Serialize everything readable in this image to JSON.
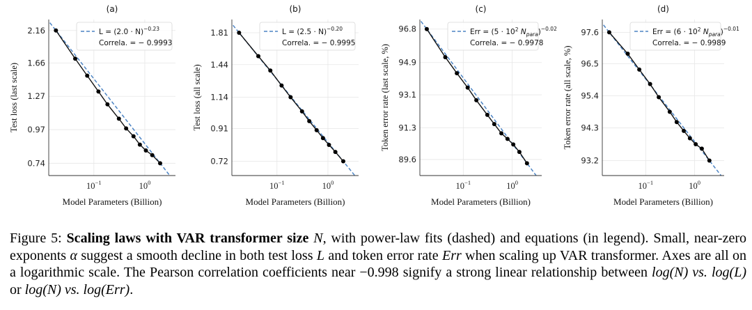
{
  "chart_data": [
    {
      "type": "line",
      "panel": "(a)",
      "xlabel": "Model Parameters (Billion)",
      "ylabel": "Test loss (last scale)",
      "xscale": "log",
      "yscale": "log",
      "xlim": [
        0.013,
        4.0
      ],
      "ylim": [
        0.67,
        2.36
      ],
      "yticks": [
        0.74,
        0.97,
        1.27,
        1.66,
        2.16
      ],
      "ytick_labels": [
        "0.74",
        "0.97",
        "1.27",
        "1.66",
        "2.16"
      ],
      "xticks": [
        0.1,
        1.0
      ],
      "xtick_bases": [
        "10",
        "10"
      ],
      "xtick_exps": [
        "−1",
        "0"
      ],
      "legend": {
        "fit": "L = (2.0 · N)",
        "exp": "−0.23",
        "correlation": "Correla. = − 0.9993"
      },
      "legend_location": "top-right",
      "fit": {
        "coef": 2.0,
        "exp": -0.23
      },
      "x": [
        0.018,
        0.043,
        0.074,
        0.123,
        0.185,
        0.31,
        0.43,
        0.6,
        0.8,
        1.05,
        1.4,
        2.0
      ],
      "y": [
        2.16,
        1.72,
        1.5,
        1.32,
        1.19,
        1.06,
        0.98,
        0.92,
        0.86,
        0.82,
        0.79,
        0.74
      ]
    },
    {
      "type": "line",
      "panel": "(b)",
      "xlabel": "Model Parameters (Billion)",
      "ylabel": "Test loss (all scale)",
      "xscale": "log",
      "yscale": "log",
      "xlim": [
        0.013,
        4.0
      ],
      "ylim": [
        0.65,
        1.99
      ],
      "yticks": [
        0.72,
        0.91,
        1.14,
        1.44,
        1.81
      ],
      "ytick_labels": [
        "0.72",
        "0.91",
        "1.14",
        "1.44",
        "1.81"
      ],
      "xticks": [
        0.1,
        1.0
      ],
      "xtick_bases": [
        "10",
        "10"
      ],
      "xtick_exps": [
        "−1",
        "0"
      ],
      "legend": {
        "fit": "L = (2.5 · N)",
        "exp": "−0.20",
        "correlation": "Correla. = − 0.9995"
      },
      "legend_location": "top-right",
      "fit": {
        "coef": 2.5,
        "exp": -0.2
      },
      "x": [
        0.018,
        0.043,
        0.074,
        0.123,
        0.185,
        0.31,
        0.43,
        0.6,
        0.8,
        1.05,
        1.4,
        2.0
      ],
      "y": [
        1.81,
        1.53,
        1.38,
        1.24,
        1.14,
        1.03,
        0.96,
        0.9,
        0.85,
        0.81,
        0.77,
        0.72
      ]
    },
    {
      "type": "line",
      "panel": "(c)",
      "xlabel": "Model Parameters (Billion)",
      "ylabel": "Token error rate (last scale, %)",
      "xscale": "log",
      "yscale": "log",
      "xlim": [
        0.013,
        4.0
      ],
      "ylim": [
        88.75,
        97.35
      ],
      "yticks": [
        89.6,
        91.3,
        93.1,
        94.9,
        96.8
      ],
      "ytick_labels": [
        "89.6",
        "91.3",
        "93.1",
        "94.9",
        "96.8"
      ],
      "xticks": [
        0.1,
        1.0
      ],
      "xtick_bases": [
        "10",
        "10"
      ],
      "xtick_exps": [
        "−1",
        "0"
      ],
      "legend": {
        "fit": "Err = (5 · 10",
        "fit_sup": "2",
        "fit_mid": " N",
        "fit_sub": "para",
        "fit_end": ")",
        "exp": "−0.02",
        "correlation": "Correla. = − 0.9978"
      },
      "legend_location": "top-right",
      "fit": {
        "coef": 500.0,
        "exp": -0.02
      },
      "x": [
        0.018,
        0.043,
        0.074,
        0.123,
        0.185,
        0.31,
        0.43,
        0.6,
        0.8,
        1.05,
        1.4,
        2.0
      ],
      "y": [
        96.8,
        95.2,
        94.3,
        93.5,
        92.8,
        92.0,
        91.5,
        91.0,
        90.7,
        90.4,
        90.0,
        89.4
      ]
    },
    {
      "type": "line",
      "panel": "(d)",
      "xlabel": "Model Parameters (Billion)",
      "ylabel": "Token error rate (all scale, %)",
      "xscale": "log",
      "yscale": "log",
      "xlim": [
        0.013,
        4.0
      ],
      "ylim": [
        92.7,
        98.05
      ],
      "yticks": [
        93.2,
        94.3,
        95.4,
        96.5,
        97.6
      ],
      "ytick_labels": [
        "93.2",
        "94.3",
        "95.4",
        "96.5",
        "97.6"
      ],
      "xticks": [
        0.1,
        1.0
      ],
      "xtick_bases": [
        "10",
        "10"
      ],
      "xtick_exps": [
        "−1",
        "0"
      ],
      "legend": {
        "fit": "Err = (6 · 10",
        "fit_sup": "2",
        "fit_mid": " N",
        "fit_sub": "para",
        "fit_end": ")",
        "exp": "−0.01",
        "correlation": "Correla. = − 0.9989"
      },
      "legend_location": "top-right",
      "fit": {
        "coef": 600.0,
        "exp": -0.01
      },
      "x": [
        0.018,
        0.043,
        0.074,
        0.123,
        0.185,
        0.31,
        0.43,
        0.6,
        0.8,
        1.05,
        1.4,
        2.0
      ],
      "y": [
        97.6,
        96.85,
        96.3,
        95.8,
        95.35,
        94.85,
        94.5,
        94.2,
        93.95,
        93.75,
        93.6,
        93.2
      ]
    }
  ],
  "caption": {
    "label": "Figure 5:",
    "bold": "Scaling laws with VAR transformer size",
    "var_n": "N",
    "after_bold": ", with power-law fits (dashed) and equations (in legend). Small, near-zero exponents",
    "alpha": "α",
    "mid1": " suggest a smooth decline in both test loss",
    "var_l": "L",
    "mid2": " and token error rate",
    "var_err": "Err",
    "mid3": " when scaling up VAR transformer. Axes are all on a logarithmic scale. The Pearson correlation coefficients near −0.998 signify a strong linear relationship between",
    "eq1": "log(N) vs. log(L)",
    "or": " or ",
    "eq2": "log(N) vs. log(Err)",
    "end": "."
  }
}
